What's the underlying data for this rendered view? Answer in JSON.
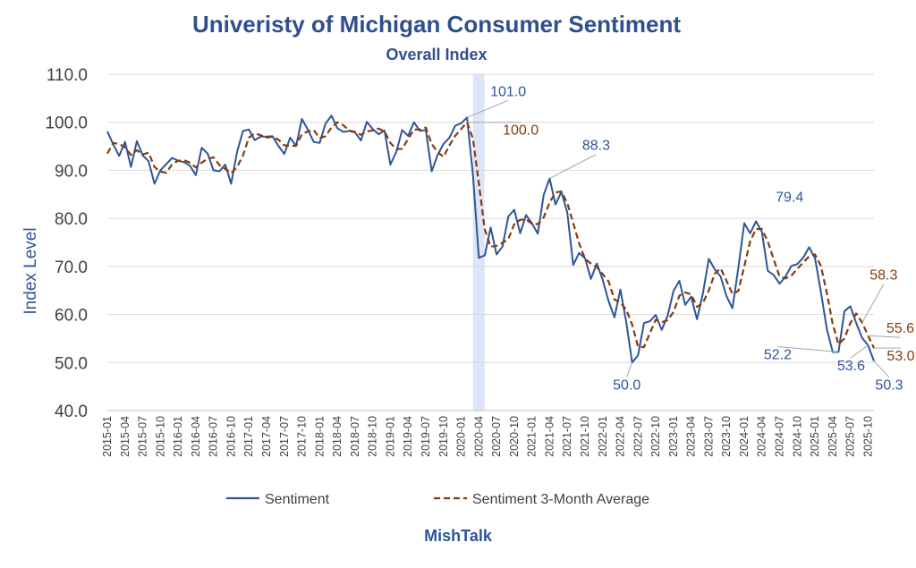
{
  "chart_data": {
    "type": "line",
    "title": "Univeristy of Michigan Consumer Sentiment",
    "subtitle": "Overall Index",
    "ylabel": "Index Level",
    "xlabel": "",
    "ylim": [
      40,
      110
    ],
    "y_ticks": [
      "40.0",
      "50.0",
      "60.0",
      "70.0",
      "80.0",
      "90.0",
      "100.0",
      "110.0"
    ],
    "x_ticks": [
      "2015-01",
      "2015-04",
      "2015-07",
      "2015-10",
      "2016-01",
      "2016-04",
      "2016-07",
      "2016-10",
      "2017-01",
      "2017-04",
      "2017-07",
      "2017-10",
      "2018-01",
      "2018-04",
      "2018-07",
      "2018-10",
      "2019-01",
      "2019-04",
      "2019-07",
      "2019-10",
      "2020-01",
      "2020-04",
      "2020-07",
      "2020-10",
      "2021-01",
      "2021-04",
      "2021-07",
      "2021-10",
      "2022-01",
      "2022-04",
      "2022-07",
      "2022-10",
      "2023-01",
      "2023-04",
      "2023-07",
      "2023-10",
      "2024-01",
      "2024-04",
      "2024-07",
      "2024-10",
      "2025-01",
      "2025-04",
      "2025-07",
      "2025-10"
    ],
    "grid": true,
    "legend_position": "bottom",
    "shaded_period": [
      "2020-03",
      "2020-04"
    ],
    "series": [
      {
        "name": "Sentiment",
        "color": "#2f5597",
        "style": "solid",
        "start": "2015-01",
        "values": [
          98.1,
          95.4,
          93.0,
          95.9,
          90.7,
          96.1,
          93.1,
          91.9,
          87.2,
          90.0,
          91.3,
          92.6,
          92.0,
          91.7,
          91.0,
          89.0,
          94.7,
          93.5,
          90.0,
          89.8,
          91.2,
          87.2,
          93.8,
          98.2,
          98.5,
          96.3,
          97.0,
          97.0,
          97.1,
          95.1,
          93.4,
          96.8,
          95.1,
          100.7,
          98.5,
          95.9,
          95.7,
          99.7,
          101.4,
          98.8,
          98.0,
          98.2,
          97.9,
          96.2,
          100.1,
          98.6,
          97.5,
          98.3,
          91.2,
          93.8,
          98.4,
          97.2,
          100.0,
          98.2,
          98.4,
          89.8,
          93.2,
          95.5,
          96.8,
          99.3,
          99.8,
          101.0,
          89.1,
          71.8,
          72.3,
          78.1,
          72.5,
          74.1,
          80.4,
          81.8,
          76.9,
          80.7,
          79.0,
          76.8,
          84.9,
          88.3,
          82.9,
          85.5,
          81.2,
          70.3,
          72.8,
          71.7,
          67.4,
          70.6,
          67.2,
          62.8,
          59.4,
          65.2,
          58.4,
          50.0,
          51.5,
          58.2,
          58.6,
          59.9,
          56.8,
          59.7,
          64.9,
          67.0,
          62.0,
          63.7,
          59.0,
          64.4,
          71.6,
          69.4,
          67.9,
          63.8,
          61.3,
          69.7,
          79.0,
          76.9,
          79.4,
          77.2,
          69.1,
          68.2,
          66.4,
          67.9,
          70.1,
          70.5,
          71.8,
          74.0,
          71.7,
          64.7,
          57.0,
          52.2,
          52.2,
          60.7,
          61.7,
          58.2,
          55.1,
          53.6,
          50.3
        ]
      },
      {
        "name": "Sentiment 3-Month Average",
        "color": "#843c0c",
        "style": "dashed",
        "start": "2015-01",
        "values": [
          93.5,
          95.7,
          95.5,
          94.8,
          93.2,
          94.2,
          93.3,
          93.7,
          90.7,
          89.7,
          89.5,
          91.3,
          92.0,
          92.1,
          91.6,
          90.6,
          91.6,
          92.4,
          92.7,
          91.1,
          90.3,
          89.4,
          90.7,
          93.1,
          96.8,
          97.7,
          97.3,
          96.8,
          97.0,
          96.4,
          95.2,
          95.1,
          95.1,
          97.5,
          98.1,
          98.4,
          96.7,
          97.1,
          98.9,
          100.0,
          99.4,
          98.3,
          98.0,
          97.4,
          98.1,
          98.3,
          98.7,
          98.1,
          95.7,
          94.4,
          94.5,
          96.5,
          98.5,
          98.5,
          98.9,
          95.5,
          93.8,
          92.8,
          95.2,
          97.2,
          98.6,
          100.0,
          96.6,
          87.3,
          77.7,
          74.1,
          74.3,
          74.9,
          75.7,
          78.8,
          79.7,
          79.8,
          78.9,
          78.8,
          80.2,
          83.3,
          85.4,
          85.6,
          83.2,
          79.0,
          74.8,
          71.6,
          70.6,
          69.9,
          68.4,
          66.9,
          63.1,
          62.5,
          61.0,
          57.9,
          53.3,
          53.2,
          56.1,
          58.9,
          58.4,
          58.8,
          60.5,
          63.9,
          64.6,
          64.2,
          61.6,
          62.4,
          65.0,
          68.5,
          69.6,
          67.0,
          64.3,
          64.9,
          70.0,
          75.2,
          77.8,
          77.8,
          75.2,
          71.5,
          67.9,
          67.5,
          68.1,
          69.5,
          70.8,
          72.1,
          72.5,
          70.1,
          64.5,
          58.0,
          53.8,
          55.0,
          58.2,
          60.2,
          58.3,
          55.6,
          53.0
        ]
      }
    ],
    "annotations": [
      {
        "text": "101.0",
        "month": "2020-02",
        "value": 101.0,
        "color": "#2f5597"
      },
      {
        "text": "100.0",
        "month": "2020-02",
        "value": 100.0,
        "color": "#843c0c"
      },
      {
        "text": "88.3",
        "month": "2021-04",
        "value": 88.3,
        "color": "#2f5597"
      },
      {
        "text": "50.0",
        "month": "2022-06",
        "value": 50.0,
        "color": "#2f5597"
      },
      {
        "text": "79.4",
        "month": "2024-03",
        "value": 79.4,
        "color": "#2f5597"
      },
      {
        "text": "52.2",
        "month": "2025-05",
        "value": 52.2,
        "color": "#2f5597"
      },
      {
        "text": "58.3",
        "month": "2025-09",
        "value": 58.3,
        "color": "#843c0c"
      },
      {
        "text": "55.6",
        "month": "2025-10",
        "value": 55.6,
        "color": "#843c0c"
      },
      {
        "text": "53.0",
        "month": "2025-11",
        "value": 53.0,
        "color": "#843c0c"
      },
      {
        "text": "53.6",
        "month": "2025-10",
        "value": 53.6,
        "color": "#2f5597"
      },
      {
        "text": "50.3",
        "month": "2025-11",
        "value": 50.3,
        "color": "#2f5597"
      }
    ]
  },
  "credit": "MishTalk"
}
